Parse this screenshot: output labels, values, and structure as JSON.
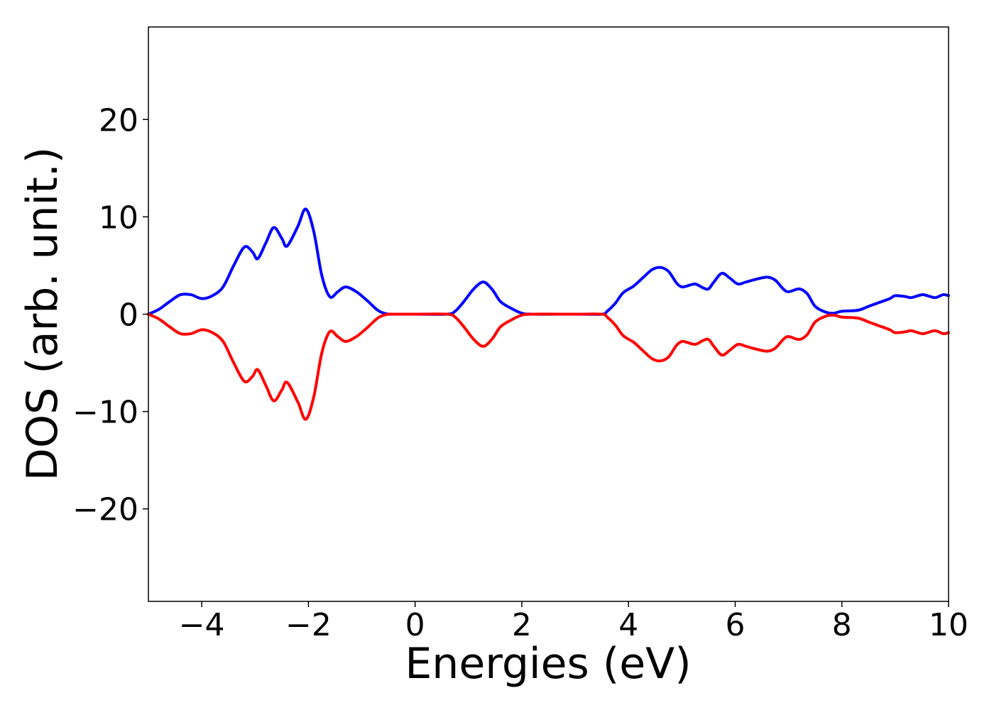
{
  "chart_data": {
    "type": "line",
    "title": "",
    "xlabel": "Energies (eV)",
    "ylabel": "DOS (arb. unit.)",
    "xlim": [
      -5,
      10
    ],
    "ylim": [
      -29.5,
      29.5
    ],
    "x_ticks": [
      -4,
      -2,
      0,
      2,
      4,
      6,
      8,
      10
    ],
    "x_tick_labels": [
      "−4",
      "−2",
      "0",
      "2",
      "4",
      "6",
      "8",
      "10"
    ],
    "y_ticks": [
      20,
      10,
      0,
      -10,
      -20
    ],
    "y_tick_labels": [
      "20",
      "10",
      "0",
      "−10",
      "−20"
    ],
    "grid": false,
    "legend": "none",
    "series": [
      {
        "color": "#0000ff",
        "points": [
          [
            -5.0,
            0.0
          ],
          [
            -4.8,
            0.5
          ],
          [
            -4.6,
            1.3
          ],
          [
            -4.4,
            2.0
          ],
          [
            -4.2,
            2.0
          ],
          [
            -4.0,
            1.6
          ],
          [
            -3.8,
            1.9
          ],
          [
            -3.6,
            2.8
          ],
          [
            -3.4,
            5.0
          ],
          [
            -3.2,
            6.9
          ],
          [
            -3.05,
            6.4
          ],
          [
            -2.95,
            5.7
          ],
          [
            -2.8,
            7.3
          ],
          [
            -2.65,
            8.9
          ],
          [
            -2.5,
            7.8
          ],
          [
            -2.4,
            7.0
          ],
          [
            -2.2,
            9.0
          ],
          [
            -2.05,
            10.8
          ],
          [
            -1.9,
            8.5
          ],
          [
            -1.75,
            4.0
          ],
          [
            -1.6,
            1.8
          ],
          [
            -1.45,
            2.3
          ],
          [
            -1.3,
            2.8
          ],
          [
            -1.1,
            2.3
          ],
          [
            -0.9,
            1.4
          ],
          [
            -0.7,
            0.4
          ],
          [
            -0.55,
            0.05
          ],
          [
            -0.4,
            0.0
          ],
          [
            0.0,
            0.0
          ],
          [
            0.6,
            0.0
          ],
          [
            0.75,
            0.3
          ],
          [
            0.9,
            1.2
          ],
          [
            1.1,
            2.6
          ],
          [
            1.28,
            3.3
          ],
          [
            1.45,
            2.5
          ],
          [
            1.6,
            1.3
          ],
          [
            1.8,
            0.6
          ],
          [
            2.0,
            0.1
          ],
          [
            2.2,
            0.0
          ],
          [
            3.0,
            0.0
          ],
          [
            3.5,
            0.0
          ],
          [
            3.6,
            0.3
          ],
          [
            3.75,
            1.1
          ],
          [
            3.9,
            2.2
          ],
          [
            4.1,
            2.9
          ],
          [
            4.3,
            3.9
          ],
          [
            4.45,
            4.6
          ],
          [
            4.6,
            4.8
          ],
          [
            4.75,
            4.4
          ],
          [
            4.9,
            3.2
          ],
          [
            5.0,
            2.8
          ],
          [
            5.1,
            2.9
          ],
          [
            5.25,
            3.1
          ],
          [
            5.4,
            2.7
          ],
          [
            5.5,
            2.6
          ],
          [
            5.6,
            3.3
          ],
          [
            5.75,
            4.2
          ],
          [
            5.9,
            3.7
          ],
          [
            6.05,
            3.1
          ],
          [
            6.2,
            3.3
          ],
          [
            6.4,
            3.6
          ],
          [
            6.6,
            3.8
          ],
          [
            6.75,
            3.5
          ],
          [
            6.9,
            2.6
          ],
          [
            7.0,
            2.3
          ],
          [
            7.2,
            2.6
          ],
          [
            7.35,
            2.1
          ],
          [
            7.5,
            0.8
          ],
          [
            7.7,
            0.2
          ],
          [
            7.85,
            0.1
          ],
          [
            8.0,
            0.3
          ],
          [
            8.3,
            0.4
          ],
          [
            8.5,
            0.8
          ],
          [
            8.7,
            1.2
          ],
          [
            8.9,
            1.6
          ],
          [
            9.0,
            1.9
          ],
          [
            9.2,
            1.8
          ],
          [
            9.3,
            1.7
          ],
          [
            9.5,
            2.0
          ],
          [
            9.6,
            1.9
          ],
          [
            9.75,
            1.7
          ],
          [
            9.9,
            2.0
          ],
          [
            10.0,
            1.9
          ]
        ]
      },
      {
        "color": "#ff0000",
        "points": [
          [
            -5.0,
            0.0
          ],
          [
            -4.8,
            -0.5
          ],
          [
            -4.6,
            -1.3
          ],
          [
            -4.4,
            -2.0
          ],
          [
            -4.2,
            -2.0
          ],
          [
            -4.0,
            -1.6
          ],
          [
            -3.8,
            -1.9
          ],
          [
            -3.6,
            -2.8
          ],
          [
            -3.4,
            -5.0
          ],
          [
            -3.2,
            -6.9
          ],
          [
            -3.05,
            -6.4
          ],
          [
            -2.95,
            -5.7
          ],
          [
            -2.8,
            -7.3
          ],
          [
            -2.65,
            -8.9
          ],
          [
            -2.5,
            -7.8
          ],
          [
            -2.4,
            -7.0
          ],
          [
            -2.2,
            -9.0
          ],
          [
            -2.05,
            -10.8
          ],
          [
            -1.9,
            -8.5
          ],
          [
            -1.75,
            -4.0
          ],
          [
            -1.6,
            -1.8
          ],
          [
            -1.45,
            -2.3
          ],
          [
            -1.3,
            -2.8
          ],
          [
            -1.1,
            -2.3
          ],
          [
            -0.9,
            -1.4
          ],
          [
            -0.7,
            -0.4
          ],
          [
            -0.55,
            -0.05
          ],
          [
            -0.4,
            0.0
          ],
          [
            0.0,
            0.0
          ],
          [
            0.6,
            0.0
          ],
          [
            0.75,
            -0.3
          ],
          [
            0.9,
            -1.2
          ],
          [
            1.1,
            -2.6
          ],
          [
            1.28,
            -3.3
          ],
          [
            1.45,
            -2.5
          ],
          [
            1.6,
            -1.3
          ],
          [
            1.8,
            -0.6
          ],
          [
            2.0,
            -0.1
          ],
          [
            2.2,
            0.0
          ],
          [
            3.0,
            0.0
          ],
          [
            3.5,
            0.0
          ],
          [
            3.6,
            -0.3
          ],
          [
            3.75,
            -1.1
          ],
          [
            3.9,
            -2.2
          ],
          [
            4.1,
            -2.9
          ],
          [
            4.3,
            -3.9
          ],
          [
            4.45,
            -4.6
          ],
          [
            4.6,
            -4.8
          ],
          [
            4.75,
            -4.4
          ],
          [
            4.9,
            -3.2
          ],
          [
            5.0,
            -2.8
          ],
          [
            5.1,
            -2.9
          ],
          [
            5.25,
            -3.1
          ],
          [
            5.4,
            -2.7
          ],
          [
            5.5,
            -2.6
          ],
          [
            5.6,
            -3.3
          ],
          [
            5.75,
            -4.2
          ],
          [
            5.9,
            -3.7
          ],
          [
            6.05,
            -3.1
          ],
          [
            6.2,
            -3.3
          ],
          [
            6.4,
            -3.6
          ],
          [
            6.6,
            -3.8
          ],
          [
            6.75,
            -3.5
          ],
          [
            6.9,
            -2.6
          ],
          [
            7.0,
            -2.3
          ],
          [
            7.2,
            -2.6
          ],
          [
            7.35,
            -2.1
          ],
          [
            7.5,
            -0.8
          ],
          [
            7.7,
            -0.2
          ],
          [
            7.85,
            -0.1
          ],
          [
            8.0,
            -0.3
          ],
          [
            8.3,
            -0.4
          ],
          [
            8.5,
            -0.8
          ],
          [
            8.7,
            -1.2
          ],
          [
            8.9,
            -1.6
          ],
          [
            9.0,
            -1.9
          ],
          [
            9.2,
            -1.8
          ],
          [
            9.3,
            -1.7
          ],
          [
            9.5,
            -2.0
          ],
          [
            9.6,
            -1.9
          ],
          [
            9.75,
            -1.7
          ],
          [
            9.9,
            -2.0
          ],
          [
            10.0,
            -1.9
          ]
        ]
      }
    ]
  }
}
